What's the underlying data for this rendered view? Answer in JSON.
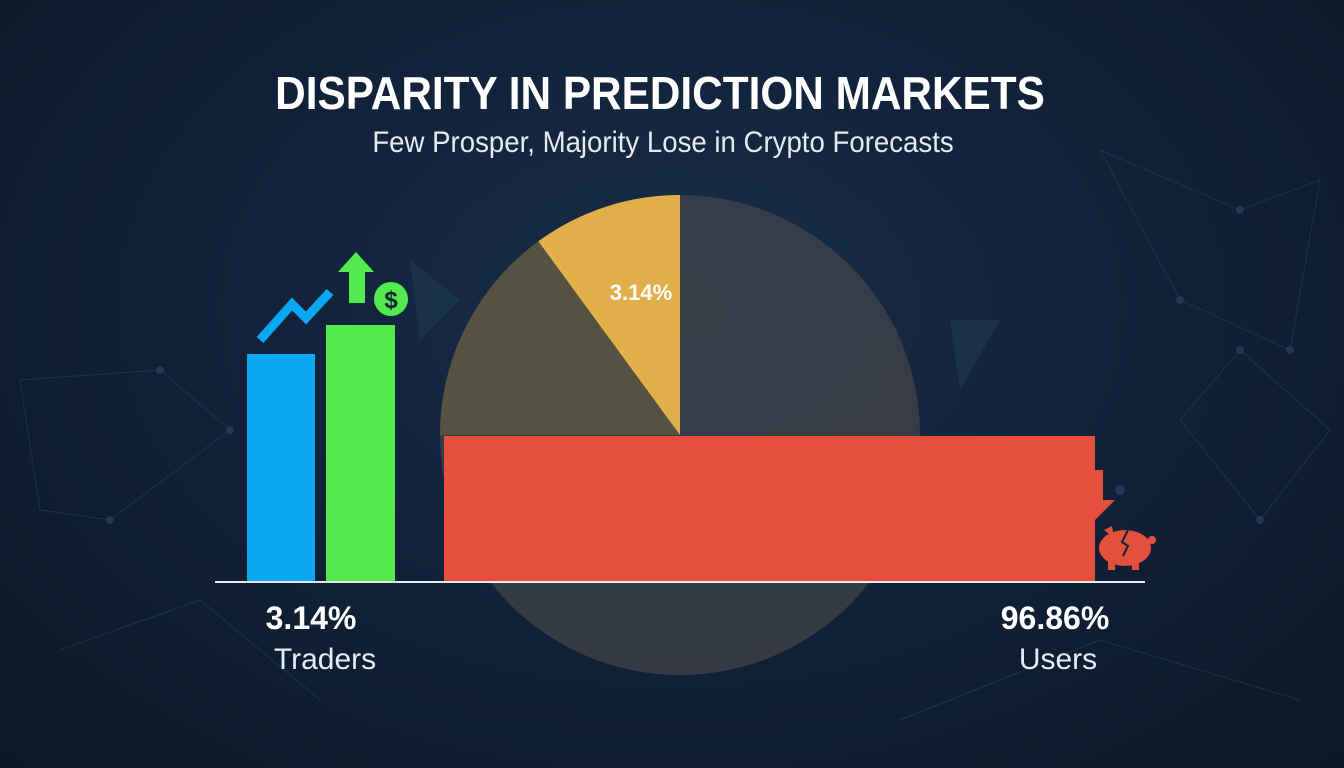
{
  "header": {
    "title": "DISPARITY IN PREDICTION MARKETS",
    "subtitle": "Few Prosper, Majority Lose in Crypto Forecasts"
  },
  "chart_data": {
    "type": "pie",
    "slices": [
      {
        "label": "3.14%",
        "value": 3.14,
        "color": "#f0b94a"
      },
      {
        "value": 96.86,
        "color": "#3d4149"
      }
    ],
    "bars": [
      {
        "group": "Traders",
        "value": 3.14,
        "label": "3.14%",
        "colors": [
          "#0aa8f2",
          "#52ea4c"
        ]
      },
      {
        "group": "Users",
        "value": 96.86,
        "label": "96.86%",
        "color": "#e4503c"
      }
    ],
    "icons": [
      "trend-up-line-icon",
      "up-arrow-icon",
      "dollar-coin-icon",
      "down-arrow-icon",
      "broken-piggy-bank-icon"
    ]
  },
  "labels": {
    "traders_pct": "3.14%",
    "traders": "Traders",
    "users_pct": "96.86%",
    "users": "Users",
    "pie_label": "3.14%",
    "dollar": "$"
  }
}
